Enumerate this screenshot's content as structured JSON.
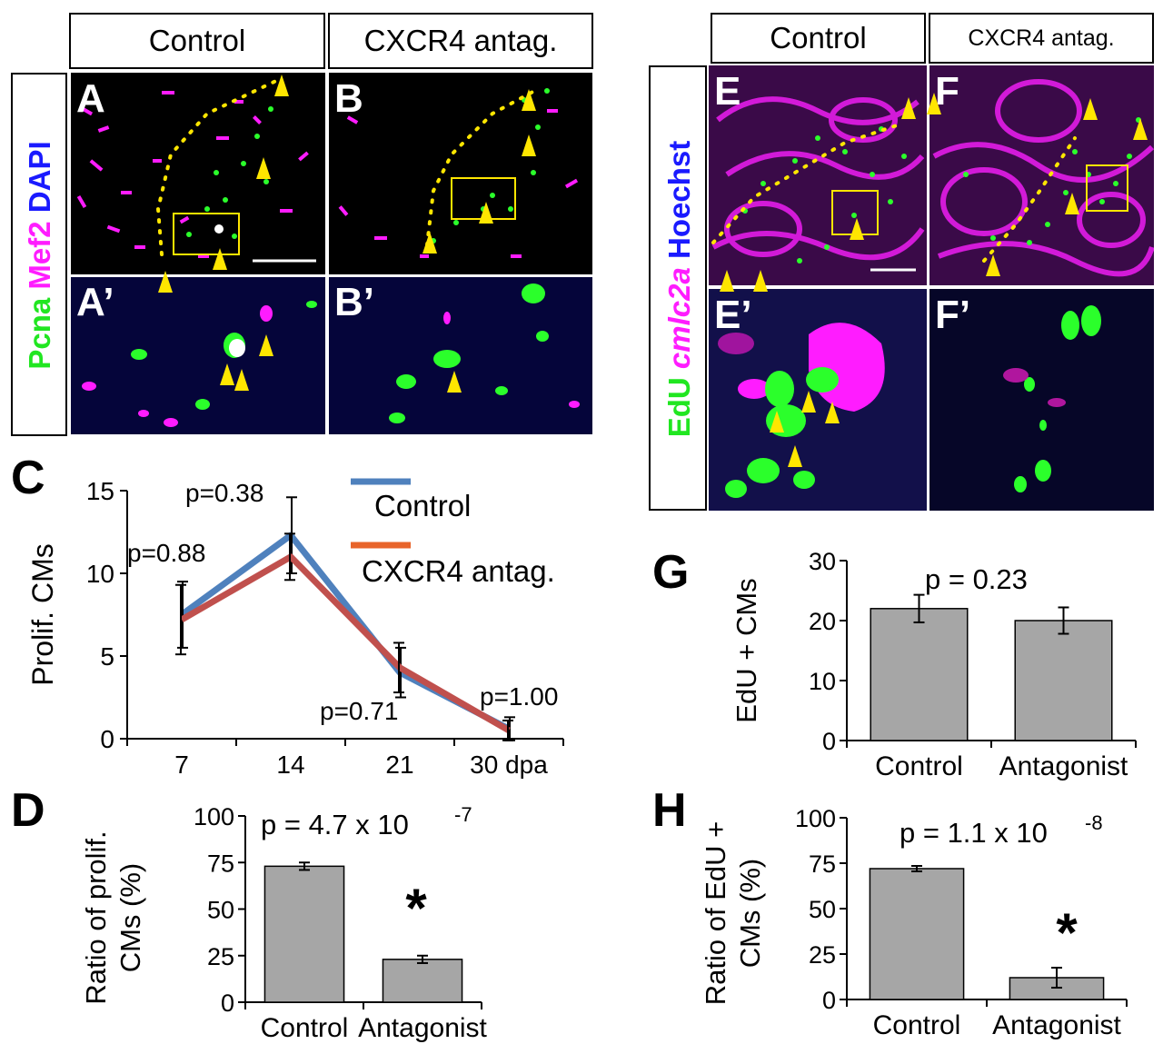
{
  "left_block": {
    "header_control": "Control",
    "header_antag": "CXCR4 antag.",
    "stain": {
      "pcna": "Pcna",
      "mef2": "Mef2",
      "dapi": "DAPI"
    },
    "labels": {
      "a": "A",
      "b": "B",
      "a_prime": "A’",
      "b_prime": "B’"
    }
  },
  "right_block": {
    "header_control": "Control",
    "header_antag": "CXCR4 antag.",
    "stain": {
      "edu": "EdU",
      "cmlc2a": "cmlc2a",
      "hoechst": "Hoechst"
    },
    "labels": {
      "e": "E",
      "f": "F",
      "e_prime": "E’",
      "f_prime": "F’"
    }
  },
  "panel_letters": {
    "c": "C",
    "d": "D",
    "g": "G",
    "h": "H"
  },
  "colors": {
    "pcna_green": "#2bff2b",
    "mef2_magenta": "#ff1cff",
    "dapi_blue": "#1a1aff",
    "control_line": "#4f81bd",
    "antag_line": "#c0504d",
    "legend_antag": "#e8642a",
    "bar_fill": "#a6a6a6",
    "arrow_yellow": "#ffe600"
  },
  "chart_data": [
    {
      "id": "C",
      "type": "line",
      "ylabel": "Prolif. CMs",
      "x_ticks": [
        "7",
        "14",
        "21",
        "30 dpa"
      ],
      "ylim": [
        0,
        15
      ],
      "y_ticks": [
        "0",
        "5",
        "10",
        "15"
      ],
      "series": [
        {
          "name": "Control",
          "values": [
            7.5,
            12.3,
            4.0,
            0.6
          ],
          "errors": [
            2.0,
            2.3,
            1.5,
            0.7
          ]
        },
        {
          "name": "CXCR4 antag.",
          "values": [
            7.2,
            11.0,
            4.3,
            0.5
          ],
          "errors": [
            2.1,
            1.4,
            1.5,
            0.6
          ]
        }
      ],
      "annotations": [
        "p=0.88",
        "p=0.38",
        "p=0.71",
        "p=1.00"
      ]
    },
    {
      "id": "D",
      "type": "bar",
      "ylabel": "Ratio of prolif. CMs (%)",
      "categories": [
        "Control",
        "Antagonist"
      ],
      "values": [
        73,
        23
      ],
      "errors": [
        2,
        2
      ],
      "ylim": [
        0,
        100
      ],
      "y_ticks": [
        "0",
        "25",
        "50",
        "75",
        "100"
      ],
      "annotation_base": "p = 4.7 x 10",
      "annotation_exp": "-7",
      "significance": "*"
    },
    {
      "id": "G",
      "type": "bar",
      "ylabel": "EdU + CMs",
      "categories": [
        "Control",
        "Antagonist"
      ],
      "values": [
        22,
        20
      ],
      "errors": [
        2.3,
        2.2
      ],
      "ylim": [
        0,
        30
      ],
      "y_ticks": [
        "0",
        "10",
        "20",
        "30"
      ],
      "annotation": "p = 0.23"
    },
    {
      "id": "H",
      "type": "bar",
      "ylabel": "Ratio of EdU + CMs (%)",
      "categories": [
        "Control",
        "Antagonist"
      ],
      "values": [
        72,
        12
      ],
      "errors": [
        1.5,
        5.5
      ],
      "ylim": [
        0,
        100
      ],
      "y_ticks": [
        "0",
        "25",
        "50",
        "75",
        "100"
      ],
      "annotation_base": "p = 1.1 x 10",
      "annotation_exp": "-8",
      "significance": "*"
    }
  ]
}
